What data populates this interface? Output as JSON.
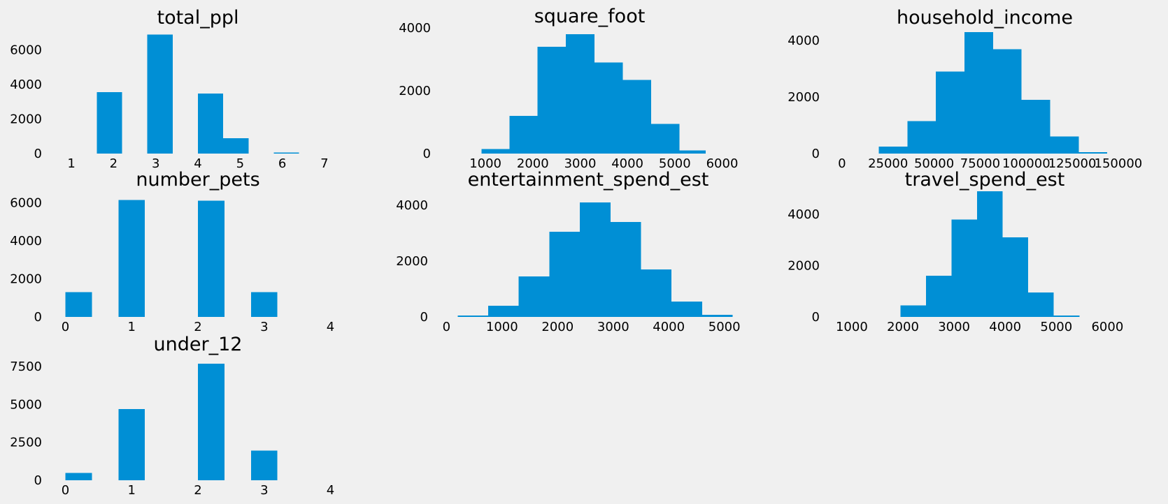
{
  "figure": {
    "background": "#f0f0f0",
    "bar_color": "#008fd5"
  },
  "chart_data": [
    {
      "type": "bar",
      "variant": "histogram",
      "title": "total_ppl",
      "xlim": [
        0.7,
        7.3
      ],
      "ylim": [
        0,
        7200
      ],
      "xticks": [
        1,
        2,
        3,
        4,
        5,
        6,
        7
      ],
      "yticks": [
        0,
        2000,
        4000,
        6000
      ],
      "bins": [
        [
          1.6,
          2.2,
          3550
        ],
        [
          2.8,
          3.4,
          6900
        ],
        [
          4.0,
          4.6,
          3480
        ],
        [
          4.6,
          5.2,
          900
        ],
        [
          5.8,
          6.4,
          50
        ]
      ]
    },
    {
      "type": "bar",
      "variant": "histogram",
      "title": "square_foot",
      "xlim": [
        200,
        6200
      ],
      "ylim": [
        0,
        4000
      ],
      "xticks": [
        1000,
        2000,
        3000,
        4000,
        5000,
        6000
      ],
      "yticks": [
        0,
        2000,
        4000
      ],
      "bins": [
        [
          920,
          1510,
          150
        ],
        [
          1510,
          2100,
          1200
        ],
        [
          2100,
          2700,
          3400
        ],
        [
          2700,
          3300,
          3800
        ],
        [
          3300,
          3900,
          2900
        ],
        [
          3900,
          4500,
          2350
        ],
        [
          4500,
          5100,
          950
        ],
        [
          5100,
          5650,
          100
        ]
      ]
    },
    {
      "type": "bar",
      "variant": "histogram",
      "title": "household_income",
      "xlim": [
        -3000,
        158000
      ],
      "ylim": [
        0,
        4400
      ],
      "xticks": [
        0,
        25000,
        50000,
        75000,
        100000,
        125000,
        150000
      ],
      "yticks": [
        0,
        2000,
        4000
      ],
      "bins": [
        [
          20000,
          35500,
          250
        ],
        [
          35500,
          51000,
          1150
        ],
        [
          51000,
          66500,
          2900
        ],
        [
          66500,
          82000,
          4300
        ],
        [
          82000,
          97500,
          3700
        ],
        [
          97500,
          113000,
          1900
        ],
        [
          113000,
          128500,
          600
        ],
        [
          128500,
          144000,
          50
        ]
      ]
    },
    {
      "type": "bar",
      "variant": "histogram",
      "title": "number_pets",
      "xlim": [
        -0.1,
        4.1
      ],
      "ylim": [
        0,
        6600
      ],
      "xticks": [
        0,
        1,
        2,
        3,
        4
      ],
      "yticks": [
        0,
        2000,
        4000,
        6000
      ],
      "bins": [
        [
          0.0,
          0.4,
          1300
        ],
        [
          0.8,
          1.2,
          6150
        ],
        [
          2.0,
          2.4,
          6100
        ],
        [
          2.8,
          3.2,
          1300
        ]
      ]
    },
    {
      "type": "bar",
      "variant": "histogram",
      "title": "entertainment_spend_est",
      "xlim": [
        -30,
        5130
      ],
      "ylim": [
        0,
        4500
      ],
      "xticks": [
        0,
        1000,
        2000,
        3000,
        4000,
        5000
      ],
      "yticks": [
        0,
        2000,
        4000
      ],
      "bins": [
        [
          200,
          750,
          50
        ],
        [
          750,
          1300,
          400
        ],
        [
          1300,
          1850,
          1450
        ],
        [
          1850,
          2400,
          3050
        ],
        [
          2400,
          2950,
          4100
        ],
        [
          2950,
          3500,
          3400
        ],
        [
          3500,
          4050,
          1700
        ],
        [
          4050,
          4600,
          550
        ],
        [
          4600,
          5150,
          80
        ]
      ]
    },
    {
      "type": "bar",
      "variant": "histogram",
      "title": "travel_spend_est",
      "xlim": [
        700,
        6500
      ],
      "ylim": [
        0,
        4900
      ],
      "xticks": [
        1000,
        2000,
        3000,
        4000,
        5000,
        6000
      ],
      "yticks": [
        0,
        2000,
        4000
      ],
      "bins": [
        [
          1950,
          2450,
          450
        ],
        [
          2450,
          2950,
          1600
        ],
        [
          2950,
          3450,
          3800
        ],
        [
          3450,
          3950,
          4900
        ],
        [
          3950,
          4450,
          3100
        ],
        [
          4450,
          4950,
          950
        ],
        [
          4950,
          5450,
          50
        ]
      ]
    },
    {
      "type": "bar",
      "variant": "histogram",
      "title": "under_12",
      "xlim": [
        -0.1,
        4.1
      ],
      "ylim": [
        0,
        8200
      ],
      "xticks": [
        0,
        1,
        2,
        3,
        4
      ],
      "yticks": [
        0,
        2500,
        5000,
        7500
      ],
      "bins": [
        [
          0.0,
          0.4,
          480
        ],
        [
          0.8,
          1.2,
          4700
        ],
        [
          2.0,
          2.4,
          7700
        ],
        [
          2.8,
          3.2,
          1950
        ]
      ]
    }
  ]
}
